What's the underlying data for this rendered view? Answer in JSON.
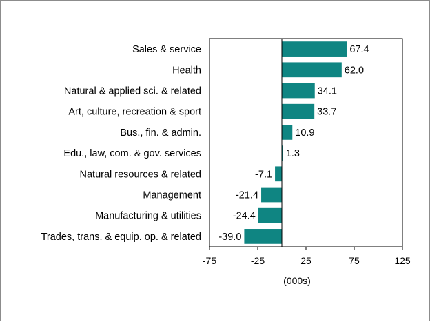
{
  "chart_data": {
    "type": "bar",
    "orientation": "horizontal",
    "title": "",
    "xlabel": "(000s)",
    "ylabel": "",
    "xlim": [
      -75,
      125
    ],
    "xticks": [
      -75,
      -25,
      25,
      75,
      125
    ],
    "xtick_labels": [
      "-75",
      "-25",
      "25",
      "75",
      "125"
    ],
    "grid": false,
    "legend": "none",
    "bar_color": "#0f8582",
    "categories": [
      "Sales & service",
      "Health",
      "Natural & applied sci. & related",
      "Art, culture, recreation & sport",
      "Bus., fin. & admin.",
      "Edu., law, com. & gov. services",
      "Natural resources & related",
      "Management",
      "Manufacturing & utilities",
      "Trades, trans. & equip. op. & related"
    ],
    "values": [
      67.4,
      62.0,
      34.1,
      33.7,
      10.9,
      1.3,
      -7.1,
      -21.4,
      -24.4,
      -39.0
    ],
    "value_labels": [
      "67.4",
      "62.0",
      "34.1",
      "33.7",
      "10.9",
      "1.3",
      "-7.1",
      "-21.4",
      "-24.4",
      "-39.0"
    ]
  }
}
